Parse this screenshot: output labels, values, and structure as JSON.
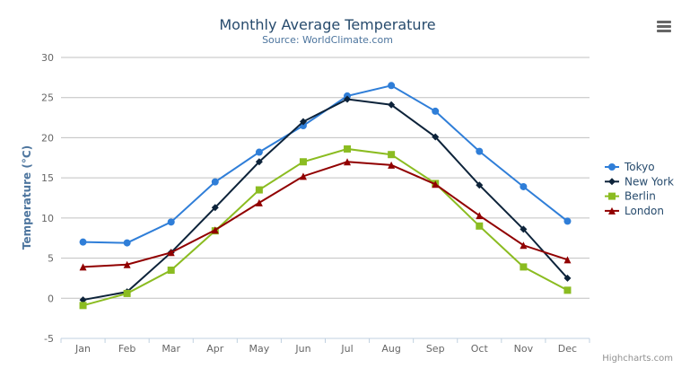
{
  "chart_data": {
    "type": "line",
    "title": "Monthly Average Temperature",
    "subtitle": "Source: WorldClimate.com",
    "xlabel": "",
    "ylabel": "Temperature (°C)",
    "categories": [
      "Jan",
      "Feb",
      "Mar",
      "Apr",
      "May",
      "Jun",
      "Jul",
      "Aug",
      "Sep",
      "Oct",
      "Nov",
      "Dec"
    ],
    "ylim": [
      -5,
      30
    ],
    "yticks": [
      -5,
      0,
      5,
      10,
      15,
      20,
      25,
      30
    ],
    "grid": true,
    "legend_position": "right",
    "series": [
      {
        "name": "Tokyo",
        "color": "#2f7ed8",
        "marker": "circle",
        "values": [
          7.0,
          6.9,
          9.5,
          14.5,
          18.2,
          21.5,
          25.2,
          26.5,
          23.3,
          18.3,
          13.9,
          9.6
        ]
      },
      {
        "name": "New York",
        "color": "#0d233a",
        "marker": "diamond",
        "values": [
          -0.2,
          0.8,
          5.7,
          11.3,
          17.0,
          22.0,
          24.8,
          24.1,
          20.1,
          14.1,
          8.6,
          2.5
        ]
      },
      {
        "name": "Berlin",
        "color": "#8bbc21",
        "marker": "square",
        "values": [
          -0.9,
          0.6,
          3.5,
          8.4,
          13.5,
          17.0,
          18.6,
          17.9,
          14.3,
          9.0,
          3.9,
          1.0
        ]
      },
      {
        "name": "London",
        "color": "#910000",
        "marker": "triangle",
        "values": [
          3.9,
          4.2,
          5.7,
          8.5,
          11.9,
          15.2,
          17.0,
          16.6,
          14.2,
          10.3,
          6.6,
          4.8
        ]
      }
    ]
  },
  "credits": "Highcharts.com",
  "menu_icon": "hamburger-menu-icon"
}
